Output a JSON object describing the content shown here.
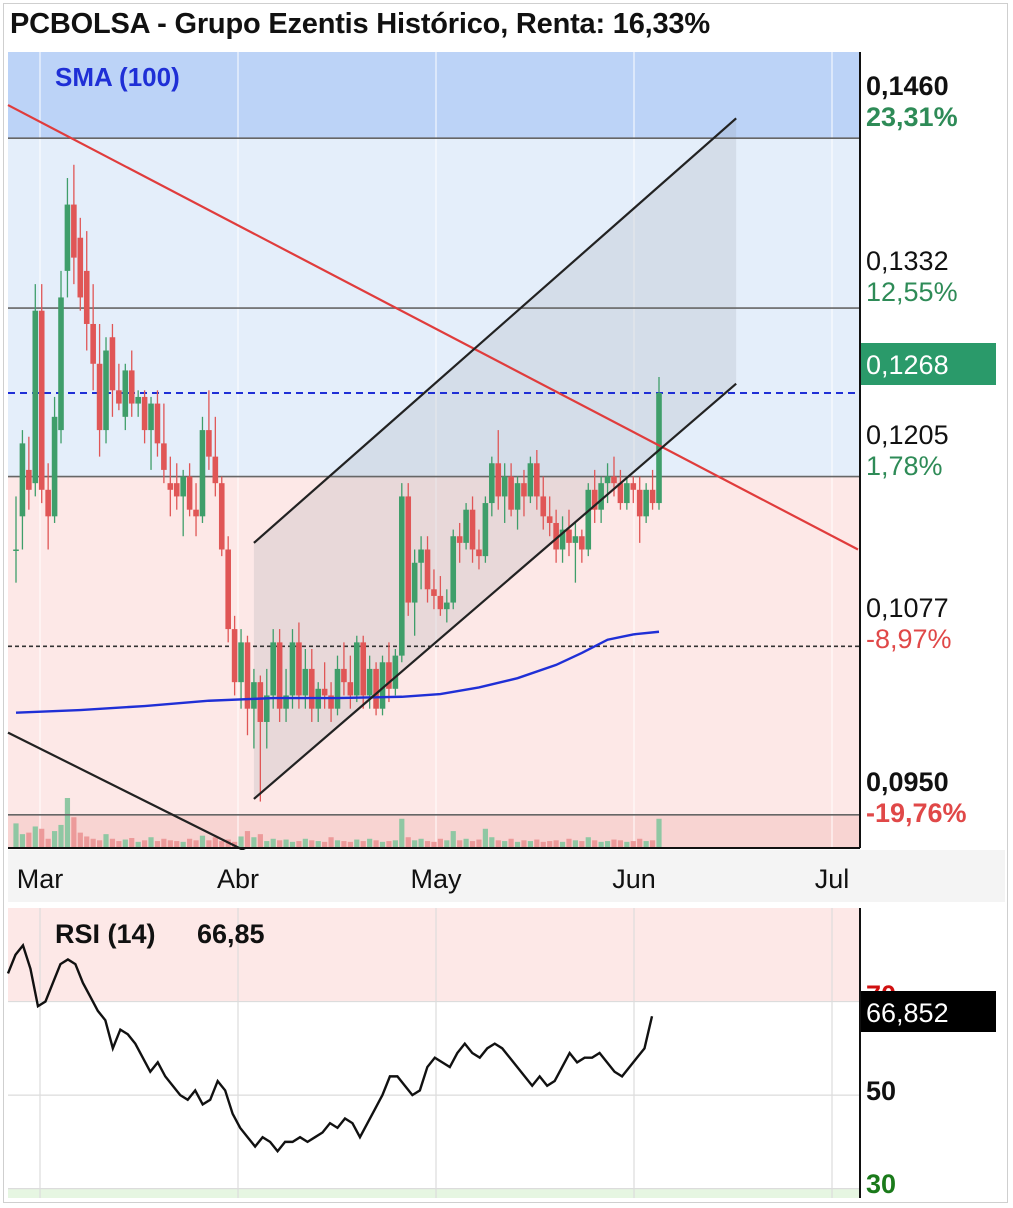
{
  "title": "PCBOLSA - Grupo Ezentis Histórico, Renta: 16,33%",
  "colors": {
    "up": "#3f9e6a",
    "down": "#e05656",
    "sma": "#1f2fd6",
    "trendline": "#e03c3c",
    "channel": "#222222",
    "zone_blue": "#bcd3f7",
    "zone_lightblue": "#e4eefa",
    "zone_pink": "#fde8e7",
    "zone_red": "#f8d4d2",
    "price_badge": "#2a9a6a"
  },
  "chart_data": [
    {
      "type": "candlestick",
      "title": "PCBOLSA - Grupo Ezentis Histórico, Renta: 16,33%",
      "indicator_label": "SMA (100)",
      "x_tick_labels": [
        "Mar",
        "Abr",
        "May",
        "Jun",
        "Jul"
      ],
      "ylim": [
        0.0925,
        0.1525
      ],
      "levels": [
        {
          "price": "0,1460",
          "pct": "23,31%",
          "price_value": 0.146,
          "pct_value": 23.31,
          "sign": "up",
          "bold": true
        },
        {
          "price": "0,1332",
          "pct": "12,55%",
          "price_value": 0.1332,
          "pct_value": 12.55,
          "sign": "up",
          "bold": false
        },
        {
          "price": "0,1205",
          "pct": "1,78%",
          "price_value": 0.1205,
          "pct_value": 1.78,
          "sign": "up",
          "bold": false
        },
        {
          "price": "0,1077",
          "pct": "-8,97%",
          "price_value": 0.1077,
          "pct_value": -8.97,
          "sign": "down",
          "bold": false
        },
        {
          "price": "0,0950",
          "pct": "-19,76%",
          "price_value": 0.095,
          "pct_value": -19.76,
          "sign": "down",
          "bold": true
        }
      ],
      "last_price": "0,1268",
      "last_price_value": 0.1268,
      "candles": [
        [
          0.115,
          0.119,
          0.1125,
          0.115
        ],
        [
          0.1175,
          0.124,
          0.115,
          0.123
        ],
        [
          0.121,
          0.1235,
          0.118,
          0.1195
        ],
        [
          0.12,
          0.135,
          0.119,
          0.133
        ],
        [
          0.133,
          0.135,
          0.1185,
          0.1195
        ],
        [
          0.1195,
          0.1215,
          0.115,
          0.1175
        ],
        [
          0.1175,
          0.1265,
          0.117,
          0.125
        ],
        [
          0.124,
          0.136,
          0.123,
          0.134
        ],
        [
          0.136,
          0.143,
          0.134,
          0.141
        ],
        [
          0.141,
          0.144,
          0.135,
          0.137
        ],
        [
          0.1385,
          0.14,
          0.133,
          0.134
        ],
        [
          0.136,
          0.139,
          0.13,
          0.132
        ],
        [
          0.132,
          0.135,
          0.127,
          0.129
        ],
        [
          0.129,
          0.132,
          0.122,
          0.124
        ],
        [
          0.124,
          0.131,
          0.123,
          0.13
        ],
        [
          0.131,
          0.132,
          0.125,
          0.127
        ],
        [
          0.127,
          0.129,
          0.1255,
          0.126
        ],
        [
          0.125,
          0.129,
          0.124,
          0.1285
        ],
        [
          0.1285,
          0.13,
          0.125,
          0.126
        ],
        [
          0.126,
          0.127,
          0.125,
          0.1265
        ],
        [
          0.1265,
          0.127,
          0.123,
          0.124
        ],
        [
          0.124,
          0.1265,
          0.121,
          0.126
        ],
        [
          0.126,
          0.127,
          0.122,
          0.123
        ],
        [
          0.123,
          0.126,
          0.12,
          0.121
        ],
        [
          0.12,
          0.122,
          0.1175,
          0.1195
        ],
        [
          0.12,
          0.1215,
          0.118,
          0.119
        ],
        [
          0.119,
          0.121,
          0.116,
          0.1205
        ],
        [
          0.1205,
          0.1215,
          0.1175,
          0.118
        ],
        [
          0.118,
          0.12,
          0.116,
          0.1175
        ],
        [
          0.1175,
          0.125,
          0.117,
          0.124
        ],
        [
          0.124,
          0.127,
          0.121,
          0.122
        ],
        [
          0.122,
          0.125,
          0.119,
          0.12
        ],
        [
          0.12,
          0.1205,
          0.1145,
          0.115
        ],
        [
          0.115,
          0.116,
          0.108,
          0.109
        ],
        [
          0.109,
          0.11,
          0.104,
          0.105
        ],
        [
          0.105,
          0.109,
          0.103,
          0.108
        ],
        [
          0.108,
          0.1085,
          0.101,
          0.103
        ],
        [
          0.103,
          0.106,
          0.1,
          0.105
        ],
        [
          0.105,
          0.1055,
          0.096,
          0.102
        ],
        [
          0.102,
          0.106,
          0.1,
          0.104
        ],
        [
          0.104,
          0.109,
          0.103,
          0.108
        ],
        [
          0.108,
          0.109,
          0.102,
          0.103
        ],
        [
          0.103,
          0.106,
          0.102,
          0.104
        ],
        [
          0.104,
          0.109,
          0.103,
          0.108
        ],
        [
          0.108,
          0.1095,
          0.103,
          0.104
        ],
        [
          0.104,
          0.1075,
          0.103,
          0.106
        ],
        [
          0.106,
          0.1075,
          0.102,
          0.103
        ],
        [
          0.103,
          0.105,
          0.102,
          0.1045
        ],
        [
          0.1045,
          0.1065,
          0.103,
          0.104
        ],
        [
          0.104,
          0.105,
          0.102,
          0.103
        ],
        [
          0.103,
          0.107,
          0.1025,
          0.106
        ],
        [
          0.106,
          0.108,
          0.104,
          0.105
        ],
        [
          0.105,
          0.107,
          0.103,
          0.104
        ],
        [
          0.104,
          0.1085,
          0.1035,
          0.108
        ],
        [
          0.108,
          0.1085,
          0.103,
          0.104
        ],
        [
          0.104,
          0.107,
          0.103,
          0.106
        ],
        [
          0.106,
          0.1065,
          0.1025,
          0.103
        ],
        [
          0.103,
          0.107,
          0.1025,
          0.1065
        ],
        [
          0.1065,
          0.108,
          0.1035,
          0.1045
        ],
        [
          0.1045,
          0.1075,
          0.104,
          0.107
        ],
        [
          0.107,
          0.12,
          0.1065,
          0.119
        ],
        [
          0.119,
          0.12,
          0.11,
          0.111
        ],
        [
          0.111,
          0.115,
          0.1085,
          0.114
        ],
        [
          0.114,
          0.116,
          0.112,
          0.115
        ],
        [
          0.115,
          0.116,
          0.111,
          0.112
        ],
        [
          0.112,
          0.1135,
          0.1105,
          0.1115
        ],
        [
          0.1115,
          0.113,
          0.11,
          0.1105
        ],
        [
          0.1105,
          0.112,
          0.1095,
          0.111
        ],
        [
          0.111,
          0.1165,
          0.1105,
          0.116
        ],
        [
          0.116,
          0.117,
          0.114,
          0.1155
        ],
        [
          0.1155,
          0.1185,
          0.115,
          0.118
        ],
        [
          0.118,
          0.119,
          0.114,
          0.115
        ],
        [
          0.115,
          0.1165,
          0.1135,
          0.1145
        ],
        [
          0.1145,
          0.119,
          0.114,
          0.1185
        ],
        [
          0.1185,
          0.122,
          0.1175,
          0.1215
        ],
        [
          0.1215,
          0.124,
          0.118,
          0.119
        ],
        [
          0.119,
          0.1215,
          0.117,
          0.1205
        ],
        [
          0.1205,
          0.1215,
          0.1175,
          0.118
        ],
        [
          0.118,
          0.1205,
          0.1165,
          0.12
        ],
        [
          0.12,
          0.121,
          0.1175,
          0.119
        ],
        [
          0.119,
          0.122,
          0.1185,
          0.1215
        ],
        [
          0.1215,
          0.1225,
          0.118,
          0.119
        ],
        [
          0.119,
          0.1205,
          0.1165,
          0.1175
        ],
        [
          0.1175,
          0.119,
          0.116,
          0.117
        ],
        [
          0.117,
          0.118,
          0.114,
          0.115
        ],
        [
          0.115,
          0.1175,
          0.114,
          0.1165
        ],
        [
          0.1165,
          0.118,
          0.1145,
          0.1155
        ],
        [
          0.1155,
          0.117,
          0.1125,
          0.116
        ],
        [
          0.116,
          0.1165,
          0.114,
          0.115
        ],
        [
          0.115,
          0.12,
          0.1145,
          0.1195
        ],
        [
          0.1195,
          0.121,
          0.117,
          0.118
        ],
        [
          0.118,
          0.1205,
          0.117,
          0.12
        ],
        [
          0.12,
          0.1215,
          0.1185,
          0.1205
        ],
        [
          0.1205,
          0.122,
          0.119,
          0.12
        ],
        [
          0.12,
          0.121,
          0.118,
          0.1185
        ],
        [
          0.1185,
          0.1205,
          0.118,
          0.12
        ],
        [
          0.12,
          0.1205,
          0.1185,
          0.1195
        ],
        [
          0.1195,
          0.1205,
          0.1155,
          0.1175
        ],
        [
          0.1175,
          0.12,
          0.117,
          0.1195
        ],
        [
          0.1195,
          0.121,
          0.118,
          0.1185
        ],
        [
          0.1185,
          0.128,
          0.118,
          0.1268
        ]
      ],
      "sma_100": [
        [
          0,
          0.1027
        ],
        [
          10,
          0.1029
        ],
        [
          20,
          0.1032
        ],
        [
          30,
          0.1036
        ],
        [
          40,
          0.1038
        ],
        [
          50,
          0.1038
        ],
        [
          60,
          0.1039
        ],
        [
          66,
          0.1041
        ],
        [
          72,
          0.1046
        ],
        [
          78,
          0.1053
        ],
        [
          84,
          0.1063
        ],
        [
          88,
          0.1072
        ],
        [
          92,
          0.1082
        ],
        [
          96,
          0.1086
        ],
        [
          100,
          0.1088
        ]
      ],
      "trendline_red": [
        [
          0,
          0.1485
        ],
        [
          115,
          0.115
        ]
      ],
      "channel_upper": [
        [
          37,
          0.1155
        ],
        [
          112,
          0.1475
        ]
      ],
      "channel_lower": [
        [
          37,
          0.0962
        ],
        [
          112,
          0.1275
        ]
      ],
      "descending_lower": [
        [
          0,
          0.1012
        ],
        [
          50,
          0.0888
        ]
      ],
      "volume": [
        32,
        18,
        20,
        28,
        25,
        12,
        22,
        30,
        65,
        40,
        20,
        15,
        12,
        10,
        18,
        12,
        9,
        11,
        13,
        8,
        10,
        14,
        9,
        12,
        10,
        9,
        8,
        12,
        10,
        16,
        10,
        14,
        9,
        11,
        8,
        15,
        22,
        14,
        18,
        9,
        12,
        10,
        11,
        8,
        9,
        12,
        10,
        9,
        8,
        14,
        10,
        9,
        8,
        11,
        9,
        12,
        10,
        8,
        9,
        10,
        38,
        14,
        10,
        12,
        9,
        8,
        12,
        10,
        22,
        10,
        12,
        9,
        11,
        25,
        14,
        10,
        9,
        12,
        8,
        10,
        9,
        11,
        8,
        9,
        10,
        8,
        12,
        10,
        9,
        14,
        10,
        8,
        9,
        11,
        10,
        8,
        9,
        12,
        9,
        10,
        38
      ]
    },
    {
      "type": "line",
      "title": "RSI (14)",
      "current_value": "66,85",
      "badge_value": "66,852",
      "y_tick_labels": [
        "70",
        "50",
        "30"
      ],
      "ylim": [
        28,
        90
      ],
      "values": [
        76,
        80,
        82,
        77,
        69,
        70,
        74,
        78,
        79,
        78,
        74,
        71,
        68,
        66,
        60,
        64,
        63,
        61,
        58,
        55,
        57,
        54,
        52,
        50,
        49,
        51,
        48,
        49,
        53,
        51,
        46,
        43,
        41,
        39,
        41,
        40,
        38,
        40,
        40,
        41,
        40,
        41,
        42,
        44,
        43,
        45,
        44,
        41,
        44,
        47,
        50,
        54,
        54,
        52,
        50,
        51,
        56,
        58,
        57,
        56,
        59,
        61,
        59,
        58,
        60,
        61,
        60,
        58,
        56,
        54,
        52,
        54,
        52,
        53,
        56,
        59,
        57,
        58,
        58,
        59,
        57,
        55,
        54,
        56,
        58,
        60,
        66.85
      ]
    }
  ]
}
